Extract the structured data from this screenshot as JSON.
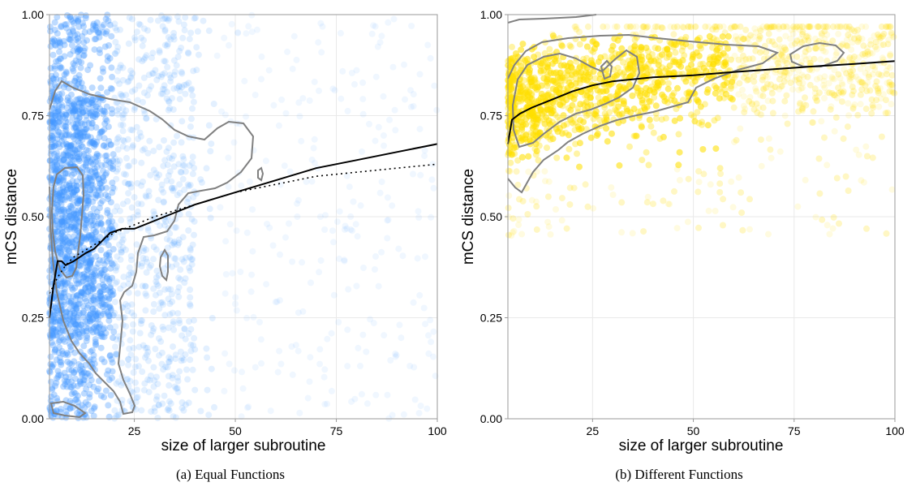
{
  "colors": {
    "panel_a_points": "#4499ff",
    "panel_b_points": "#ffe000",
    "contour": "#808080",
    "trend": "#000000"
  },
  "chart_data": [
    {
      "type": "scatter",
      "caption": "(a) Equal Functions",
      "xlabel": "size of larger subroutine",
      "ylabel": "mCS distance",
      "xlim": [
        4,
        100
      ],
      "ylim": [
        0,
        1
      ],
      "x_ticks": [
        "25",
        "50",
        "75",
        "100"
      ],
      "x_tick_values": [
        25,
        50,
        75,
        100
      ],
      "y_ticks": [
        "0.00",
        "0.25",
        "0.50",
        "0.75",
        "1.00"
      ],
      "y_tick_values": [
        0,
        0.25,
        0.5,
        0.75,
        1
      ],
      "grid": true,
      "point_color": "#4499ff",
      "points_note_density": "dense near x=5-20 across all y; sparse for x>50",
      "series": [
        {
          "style": "solid",
          "x": [
            4,
            5,
            6,
            7,
            8,
            10,
            13,
            15,
            17,
            19,
            22,
            25,
            30,
            35,
            40,
            45,
            50,
            60,
            70,
            80,
            90,
            100
          ],
          "y": [
            0.25,
            0.33,
            0.39,
            0.39,
            0.38,
            0.39,
            0.41,
            0.42,
            0.44,
            0.46,
            0.47,
            0.47,
            0.49,
            0.51,
            0.53,
            0.545,
            0.56,
            0.59,
            0.62,
            0.64,
            0.66,
            0.68
          ]
        },
        {
          "style": "dotted",
          "x": [
            4,
            6,
            8,
            10,
            15,
            20,
            25,
            30,
            40,
            50,
            60,
            70,
            80,
            90,
            100
          ],
          "y": [
            0.31,
            0.35,
            0.38,
            0.4,
            0.43,
            0.46,
            0.48,
            0.5,
            0.53,
            0.56,
            0.58,
            0.6,
            0.61,
            0.62,
            0.63
          ]
        }
      ]
    },
    {
      "type": "scatter",
      "caption": "(b) Different Functions",
      "xlabel": "size of larger subroutine",
      "ylabel": "mCS distance",
      "xlim": [
        4,
        100
      ],
      "ylim": [
        0,
        1
      ],
      "x_ticks": [
        "25",
        "50",
        "75",
        "100"
      ],
      "x_tick_values": [
        25,
        50,
        75,
        100
      ],
      "y_ticks": [
        "0.00",
        "0.25",
        "0.50",
        "0.75",
        "1.00"
      ],
      "y_tick_values": [
        0,
        0.25,
        0.5,
        0.75,
        1
      ],
      "grid": true,
      "point_color": "#ffe000",
      "points_note_density": "dense band between y=0.6 and y=0.95, extends faintly to lower y",
      "series": [
        {
          "style": "solid",
          "x": [
            4,
            5,
            7,
            10,
            15,
            20,
            25,
            30,
            40,
            50,
            60,
            70,
            80,
            90,
            100
          ],
          "y": [
            0.68,
            0.74,
            0.755,
            0.77,
            0.79,
            0.81,
            0.825,
            0.835,
            0.845,
            0.85,
            0.858,
            0.865,
            0.872,
            0.878,
            0.885
          ]
        }
      ]
    }
  ]
}
